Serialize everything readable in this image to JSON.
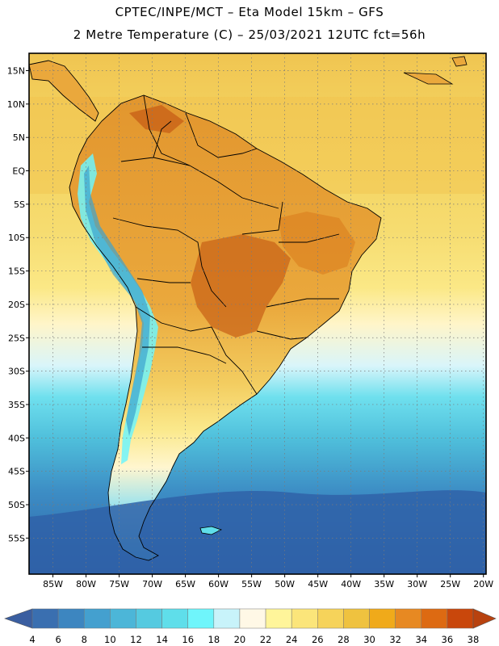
{
  "header": {
    "line1": "CPTEC/INPE/MCT  –   Eta Model 15km  – GFS",
    "line2": "2 Metre Temperature (C)  –  25/03/2021 12UTC fct=56h"
  },
  "axes": {
    "lat_labels": [
      "15N",
      "10N",
      "5N",
      "EQ",
      "5S",
      "10S",
      "15S",
      "20S",
      "25S",
      "30S",
      "35S",
      "40S",
      "45S",
      "50S",
      "55S"
    ],
    "lat_values": [
      15,
      10,
      5,
      0,
      -5,
      -10,
      -15,
      -20,
      -25,
      -30,
      -35,
      -40,
      -45,
      -50,
      -55
    ],
    "lon_labels": [
      "85W",
      "80W",
      "75W",
      "70W",
      "65W",
      "60W",
      "55W",
      "50W",
      "45W",
      "40W",
      "35W",
      "30W",
      "25W",
      "20W"
    ],
    "lon_values": [
      -85,
      -80,
      -75,
      -70,
      -65,
      -60,
      -55,
      -50,
      -45,
      -40,
      -35,
      -30,
      -25,
      -20
    ]
  },
  "colorbar": {
    "labels": [
      "4",
      "6",
      "8",
      "10",
      "12",
      "14",
      "16",
      "18",
      "20",
      "22",
      "24",
      "26",
      "28",
      "30",
      "32",
      "34",
      "36",
      "38"
    ],
    "colors": [
      "#3a6fb0",
      "#3d86c0",
      "#44a0cf",
      "#4cb6d8",
      "#55cae0",
      "#5fdeea",
      "#6ff5fb",
      "#c8f3fa",
      "#fff8e6",
      "#fff59a",
      "#fbe57a",
      "#f6d35a",
      "#efc23f",
      "#f0aa1a",
      "#e78922",
      "#dd6a12",
      "#c9470b"
    ],
    "left_arrow_color": "#3a5ea0",
    "right_arrow_color": "#b8420f"
  },
  "map": {
    "ocean_color_cold": "#2f62a8",
    "ocean_color_warm": "#f2cc57",
    "land_color": "#eaa83c",
    "hot_spot_color": "#c96418",
    "andes_color": "#6ff5fb",
    "boundary_color": "#000000",
    "grid_color": "#7a7a7a"
  }
}
